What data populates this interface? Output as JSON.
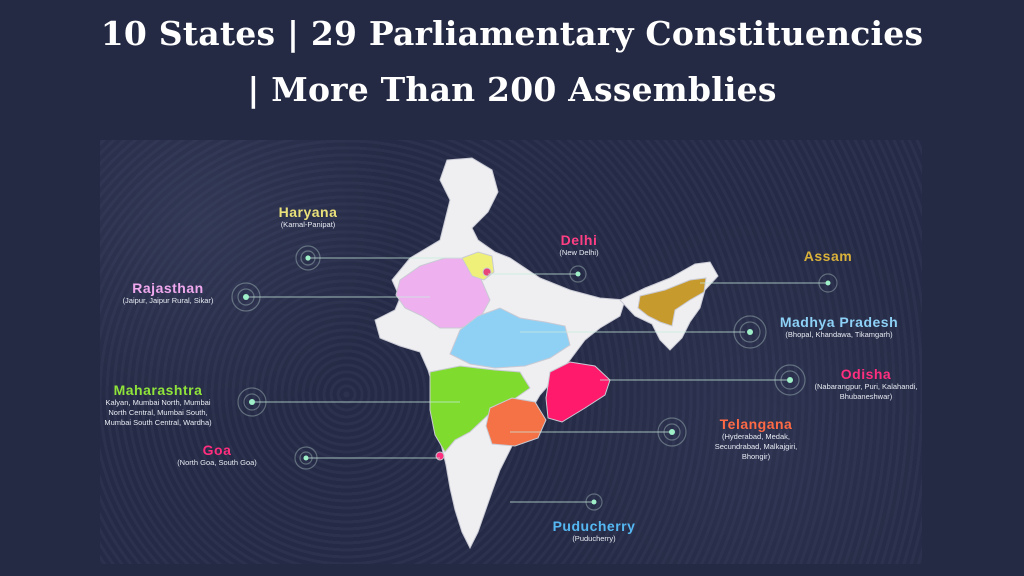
{
  "header": {
    "line1": "10 States | 29 Parliamentary Constituencies",
    "line2": "| More Than 200 Assemblies"
  },
  "labels": {
    "haryana": {
      "name": "Haryana",
      "sub": "(Karnal-Panipat)",
      "color": "#e9e07a"
    },
    "delhi": {
      "name": "Delhi",
      "sub": "(New Delhi)",
      "color": "#ff3f84"
    },
    "rajasthan": {
      "name": "Rajasthan",
      "sub": "(Jaipur, Jaipur Rural, Sikar)",
      "color": "#f0a8ee"
    },
    "assam": {
      "name": "Assam",
      "sub": "",
      "color": "#d9b13a"
    },
    "madhya_pradesh": {
      "name": "Madhya Pradesh",
      "sub": "(Bhopal, Khandawa, Tikamgarh)",
      "color": "#8ed1f7"
    },
    "maharashtra": {
      "name": "Maharashtra",
      "sub": "Kalyan, Mumbai North, Mumbai North Central, Mumbai South, Mumbai South Central, Wardha)",
      "color": "#8fe33a"
    },
    "odisha": {
      "name": "Odisha",
      "sub": "(Nabarangpur, Puri, Kalahandi, Bhubaneshwar)",
      "color": "#ff2e7e"
    },
    "telangana": {
      "name": "Telangana",
      "sub": "(Hyderabad, Medak, Secundrabad, Malkajgiri, Bhongir)",
      "color": "#ff6a45"
    },
    "goa": {
      "name": "Goa",
      "sub": "(North Goa, South Goa)",
      "color": "#ff2e7e"
    },
    "puducherry": {
      "name": "Puducherry",
      "sub": "(Puducherry)",
      "color": "#55b8f2"
    }
  },
  "map_colors": {
    "base": "#efeff2",
    "haryana": "#eef07a",
    "delhi": "#e8457a",
    "rajasthan": "#eeb0ee",
    "madhya_pradesh": "#8fd0f5",
    "maharashtra": "#7fdc2e",
    "telangana": "#f47246",
    "odisha": "#ff1a6c",
    "assam": "#c79a2e",
    "goa": "#ff2e7e"
  },
  "icons": {
    "state_marker": "target-ring-icon"
  }
}
